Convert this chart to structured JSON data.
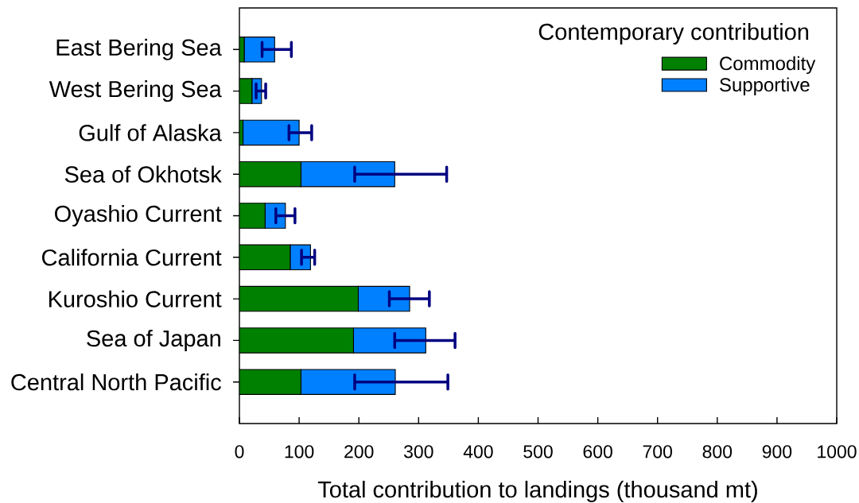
{
  "chart_data": {
    "type": "bar",
    "orientation": "horizontal",
    "stacked": true,
    "xlabel": "Total contribution to landings (thousand mt)",
    "legend_title": "Contemporary contribution",
    "legend": "top right",
    "categories": [
      "East Bering Sea",
      "West Bering Sea",
      "Gulf of Alaska",
      "Sea of Okhotsk",
      "Oyashio Current",
      "California Current",
      "Kuroshio Current",
      "Sea of Japan",
      "Central North Pacific"
    ],
    "series": [
      {
        "name": "Commodity",
        "color": "#008000",
        "values": [
          8,
          21,
          6,
          103,
          43,
          85,
          199,
          191,
          103
        ]
      },
      {
        "name": "Supportive",
        "color": "#0080ff",
        "values": [
          51,
          16,
          94,
          157,
          34,
          34,
          86,
          121,
          158
        ],
        "errors": [
          [
            38,
            87
          ],
          [
            28,
            44
          ],
          [
            83,
            121
          ],
          [
            193,
            347
          ],
          [
            61,
            93
          ],
          [
            104,
            126
          ],
          [
            251,
            318
          ],
          [
            260,
            361
          ],
          [
            193,
            349
          ]
        ]
      }
    ],
    "xlim": [
      0,
      1000
    ],
    "xticks": [
      0,
      100,
      200,
      300,
      400,
      500,
      600,
      700,
      800,
      900,
      1000
    ]
  }
}
